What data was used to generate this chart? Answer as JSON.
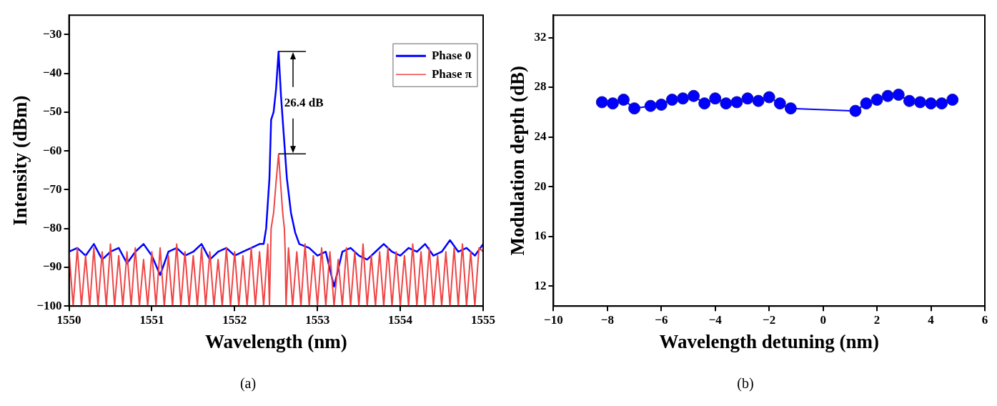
{
  "chart_data": [
    {
      "type": "line",
      "title": "(a)",
      "xlabel": "Wavelength (nm)",
      "ylabel": "Intensity (dBm)",
      "xlim": [
        1550,
        1555
      ],
      "xticks": [
        1550,
        1551,
        1552,
        1553,
        1554,
        1555
      ],
      "ylim": [
        -100,
        -25
      ],
      "yticks": [
        -100,
        -90,
        -80,
        -70,
        -60,
        -50,
        -40,
        -30
      ],
      "legend": "top right",
      "annotations": [
        "26.4 dB"
      ],
      "series": [
        {
          "name": "Phase 0",
          "color": "#0000ff",
          "x": [
            1550,
            1550.1,
            1550.2,
            1550.3,
            1550.4,
            1550.5,
            1550.6,
            1550.7,
            1550.8,
            1550.9,
            1551,
            1551.1,
            1551.2,
            1551.3,
            1551.4,
            1551.5,
            1551.6,
            1551.7,
            1551.8,
            1551.9,
            1552,
            1552.1,
            1552.2,
            1552.3,
            1552.35,
            1552.38,
            1552.42,
            1552.44,
            1552.47,
            1552.5,
            1552.53,
            1552.56,
            1552.59,
            1552.63,
            1552.68,
            1552.73,
            1552.78,
            1552.9,
            1553,
            1553.1,
            1553.2,
            1553.3,
            1553.4,
            1553.5,
            1553.6,
            1553.7,
            1553.8,
            1553.9,
            1554,
            1554.1,
            1554.2,
            1554.3,
            1554.4,
            1554.5,
            1554.6,
            1554.7,
            1554.8,
            1554.9,
            1555
          ],
          "values": [
            -86,
            -85,
            -87,
            -84,
            -88,
            -86,
            -85,
            -89,
            -86,
            -84,
            -87,
            -92,
            -86,
            -85,
            -87,
            -86,
            -84,
            -88,
            -86,
            -85,
            -87,
            -86,
            -85,
            -84,
            -84,
            -80,
            -67,
            -52,
            -50,
            -44,
            -34.4,
            -46,
            -55,
            -67,
            -76,
            -81,
            -84,
            -85,
            -87,
            -86,
            -95,
            -86,
            -85,
            -87,
            -88,
            -86,
            -84,
            -86,
            -87,
            -85,
            -86,
            -84,
            -87,
            -86,
            -83,
            -86,
            -85,
            -87,
            -84
          ]
        },
        {
          "name": "Phase π",
          "color": "#ef4444",
          "x": [
            1550,
            1550.05,
            1550.1,
            1550.15,
            1550.2,
            1550.25,
            1550.3,
            1550.35,
            1550.4,
            1550.45,
            1550.5,
            1550.55,
            1550.6,
            1550.65,
            1550.7,
            1550.75,
            1550.8,
            1550.85,
            1550.9,
            1550.95,
            1551,
            1551.05,
            1551.1,
            1551.15,
            1551.2,
            1551.25,
            1551.3,
            1551.35,
            1551.4,
            1551.45,
            1551.5,
            1551.55,
            1551.6,
            1551.65,
            1551.7,
            1551.75,
            1551.8,
            1551.85,
            1551.9,
            1551.95,
            1552,
            1552.05,
            1552.1,
            1552.15,
            1552.2,
            1552.25,
            1552.3,
            1552.35,
            1552.4,
            1552.42,
            1552.44,
            1552.47,
            1552.5,
            1552.53,
            1552.56,
            1552.58,
            1552.6,
            1552.61,
            1552.62,
            1552.65,
            1552.7,
            1552.75,
            1552.8,
            1552.85,
            1552.9,
            1552.95,
            1553,
            1553.05,
            1553.1,
            1553.15,
            1553.2,
            1553.25,
            1553.3,
            1553.35,
            1553.4,
            1553.45,
            1553.5,
            1553.55,
            1553.6,
            1553.65,
            1553.7,
            1553.75,
            1553.8,
            1553.85,
            1553.9,
            1553.95,
            1554,
            1554.05,
            1554.1,
            1554.15,
            1554.2,
            1554.25,
            1554.3,
            1554.35,
            1554.4,
            1554.45,
            1554.5,
            1554.55,
            1554.6,
            1554.65,
            1554.7,
            1554.75,
            1554.8,
            1554.85,
            1554.9,
            1554.95,
            1555
          ],
          "values": [
            -86,
            -100,
            -85,
            -100,
            -87,
            -100,
            -85,
            -100,
            -86,
            -100,
            -84,
            -100,
            -87,
            -100,
            -86,
            -100,
            -85,
            -100,
            -88,
            -100,
            -86,
            -100,
            -85,
            -100,
            -87,
            -100,
            -84,
            -100,
            -86,
            -100,
            -87,
            -100,
            -85,
            -100,
            -86,
            -100,
            -88,
            -100,
            -85,
            -100,
            -86,
            -100,
            -87,
            -100,
            -85,
            -100,
            -86,
            -100,
            -84,
            -100,
            -80,
            -76,
            -68,
            -60.8,
            -70,
            -76,
            -80,
            -86,
            -100,
            -85,
            -100,
            -86,
            -100,
            -84,
            -100,
            -87,
            -100,
            -85,
            -100,
            -86,
            -100,
            -88,
            -100,
            -85,
            -100,
            -86,
            -100,
            -84,
            -100,
            -87,
            -100,
            -86,
            -100,
            -85,
            -100,
            -86,
            -100,
            -87,
            -100,
            -84,
            -100,
            -86,
            -100,
            -85,
            -100,
            -87,
            -100,
            -86,
            -100,
            -85,
            -100,
            -84,
            -100,
            -86,
            -100,
            -85,
            -86
          ]
        }
      ]
    },
    {
      "type": "line",
      "title": "(b)",
      "xlabel": "Wavelength detuning (nm)",
      "ylabel": "Modulation depth (dB)",
      "xlim": [
        -10,
        6
      ],
      "xticks": [
        -10,
        -8,
        -6,
        -4,
        -2,
        0,
        2,
        4,
        6
      ],
      "ylim": [
        10.4,
        33.8
      ],
      "yticks": [
        12,
        16,
        20,
        24,
        28,
        32
      ],
      "marker": "circle",
      "series": [
        {
          "color": "#0000ff",
          "x": [
            -8.2,
            -7.8,
            -7.4,
            -7.0,
            -6.4,
            -6.0,
            -5.6,
            -5.2,
            -4.8,
            -4.4,
            -4.0,
            -3.6,
            -3.2,
            -2.8,
            -2.4,
            -2.0,
            -1.6,
            -1.2,
            1.2,
            1.6,
            2.0,
            2.4,
            2.8,
            3.2,
            3.6,
            4.0,
            4.4,
            4.8
          ],
          "values": [
            26.8,
            26.7,
            27.0,
            26.3,
            26.5,
            26.6,
            27.0,
            27.1,
            27.3,
            26.7,
            27.1,
            26.7,
            26.8,
            27.1,
            26.9,
            27.2,
            26.7,
            26.3,
            26.1,
            26.7,
            27.0,
            27.3,
            27.4,
            26.9,
            26.8,
            26.7,
            26.7,
            27.0
          ]
        }
      ]
    }
  ]
}
